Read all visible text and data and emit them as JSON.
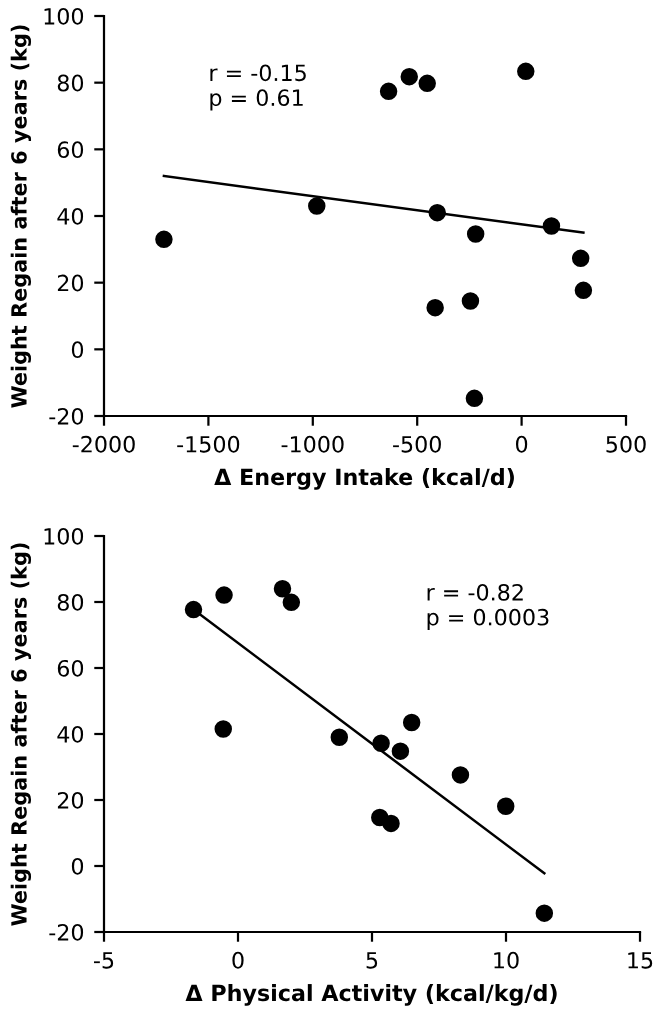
{
  "chart_data": [
    {
      "type": "scatter",
      "xlabel": "Δ Energy Intake (kcal/d)",
      "ylabel": "Weight Regain after 6 years (kg)",
      "xlim": [
        -2000,
        500
      ],
      "xticks": [
        -2000,
        -1500,
        -1000,
        -500,
        0,
        500
      ],
      "ylim": [
        -20,
        100
      ],
      "yticks": [
        -20,
        0,
        20,
        40,
        60,
        80,
        100
      ],
      "grid": false,
      "marker": "circle",
      "annotations": [
        "r = -0.15\np = 0.61"
      ],
      "series": [
        {
          "color": "#000000",
          "x": [
            -1713,
            -981,
            -637,
            -538,
            -452,
            20,
            -404,
            -414,
            -220,
            -245,
            -226,
            143,
            283,
            296
          ],
          "values": [
            33,
            43,
            77.4,
            81.8,
            79.8,
            83.4,
            41,
            12.5,
            34.6,
            14.5,
            -14.7,
            37,
            27.3,
            17.7
          ]
        },
        {
          "type": "line",
          "marker": "none",
          "color": "#000000",
          "x": [
            -1713,
            296
          ],
          "values": [
            52,
            35
          ]
        }
      ]
    },
    {
      "type": "scatter",
      "xlabel": "Δ Physical Activity (kcal/kg/d)",
      "ylabel": "Weight Regain after 6 years (kg)",
      "xlim": [
        -5,
        15
      ],
      "xticks": [
        -5,
        0,
        5,
        10,
        15
      ],
      "ylim": [
        -20,
        100
      ],
      "yticks": [
        -20,
        0,
        20,
        40,
        60,
        80,
        100
      ],
      "grid": false,
      "marker": "circle",
      "annotations": [
        "r = -0.82\np = 0.0003"
      ],
      "series": [
        {
          "color": "#000000",
          "x": [
            -1.66,
            -0.52,
            -0.55,
            1.66,
            1.99,
            3.78,
            5.34,
            5.29,
            5.71,
            6.06,
            6.48,
            8.3,
            9.99,
            11.43
          ],
          "values": [
            77.7,
            82.1,
            41.5,
            84,
            79.9,
            39,
            37.2,
            14.7,
            12.9,
            34.8,
            43.5,
            27.6,
            18.1,
            -14.3
          ]
        },
        {
          "type": "line",
          "marker": "none",
          "color": "#000000",
          "x": [
            -1.66,
            11.43
          ],
          "values": [
            77.7,
            -2.2
          ]
        }
      ]
    }
  ]
}
